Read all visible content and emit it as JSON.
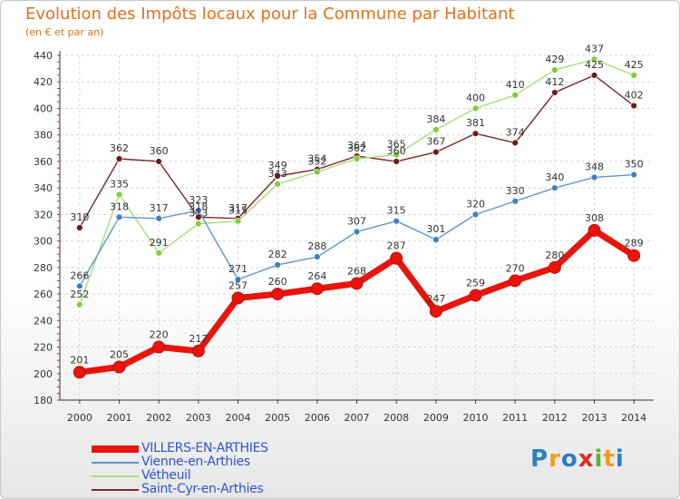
{
  "header": {
    "title": "Evolution des Impôts locaux pour la Commune par Habitant",
    "subtitle": "(en € et par an)"
  },
  "chart_data": {
    "type": "line",
    "title": "Evolution des Impôts locaux pour la Commune par Habitant",
    "subtitle": "(en € et par an)",
    "xlabel": "",
    "ylabel": "",
    "x": [
      "2000",
      "2001",
      "2002",
      "2003",
      "2004",
      "2005",
      "2006",
      "2007",
      "2008",
      "2009",
      "2010",
      "2011",
      "2012",
      "2013",
      "2014"
    ],
    "ylim": [
      180,
      440
    ],
    "yticks": [
      180,
      200,
      220,
      240,
      260,
      280,
      300,
      320,
      340,
      360,
      380,
      400,
      420,
      440
    ],
    "grid": true,
    "series": [
      {
        "name": "VILLERS-EN-ARTHIES",
        "color": "#e8140e",
        "emphasis": true,
        "values": [
          201,
          205,
          220,
          217,
          257,
          260,
          264,
          268,
          287,
          247,
          259,
          270,
          280,
          308,
          289
        ],
        "labels": [
          "201",
          "205",
          "220",
          "217",
          "257",
          "260",
          "264",
          "268",
          "287",
          "247",
          "259",
          "270",
          "280",
          "308",
          "289"
        ]
      },
      {
        "name": "Vienne-en-Arthies",
        "color": "#5c96c8",
        "point_color": "#3f7fc0",
        "values": [
          266,
          318,
          317,
          323,
          271,
          282,
          288,
          307,
          315,
          301,
          320,
          330,
          340,
          348,
          350
        ],
        "labels": [
          "266",
          "318",
          "317",
          "323",
          "271",
          "282",
          "288",
          "307",
          "315",
          "301",
          "320",
          "330",
          "340",
          "348",
          "350"
        ]
      },
      {
        "name": "Vétheuil",
        "color": "#a9dc7f",
        "point_color": "#7fcc3c",
        "values": [
          252,
          335,
          291,
          313,
          315,
          343,
          352,
          362,
          365,
          384,
          400,
          410,
          429,
          437,
          425
        ],
        "labels": [
          "252",
          "335",
          "291",
          "313",
          "315",
          "343",
          "352",
          "362",
          "365",
          "384",
          "400",
          "410",
          "429",
          "437",
          "425"
        ]
      },
      {
        "name": "Saint-Cyr-en-Arthies",
        "color": "#7a2a2a",
        "point_color": "#6b1a1a",
        "values": [
          310,
          362,
          360,
          318,
          317,
          349,
          354,
          364,
          360,
          367,
          381,
          374,
          412,
          425,
          402
        ],
        "labels": [
          "310",
          "362",
          "360",
          "318",
          "317",
          "349",
          "354",
          "364",
          "360",
          "367",
          "381",
          "374",
          "412",
          "425",
          "402"
        ]
      }
    ],
    "legend": {
      "position": "bottom-left"
    }
  },
  "legend": {
    "items": [
      {
        "label": "VILLERS-EN-ARTHIES",
        "color": "#e8140e"
      },
      {
        "label": "Vienne-en-Arthies",
        "color": "#5c96c8"
      },
      {
        "label": "Vétheuil",
        "color": "#a9dc7f"
      },
      {
        "label": "Saint-Cyr-en-Arthies",
        "color": "#7a2a2a"
      }
    ]
  },
  "logo": {
    "text": "Proxiti",
    "letters": [
      {
        "ch": "P",
        "color": "#2c7ec2"
      },
      {
        "ch": "r",
        "color": "#f29c1f"
      },
      {
        "ch": "o",
        "color": "#2c7ec2"
      },
      {
        "ch": "x",
        "color": "#e22b23"
      },
      {
        "ch": "i",
        "color": "#5bb533"
      },
      {
        "ch": "t",
        "color": "#f29c1f"
      },
      {
        "ch": "i",
        "color": "#2c7ec2"
      }
    ]
  }
}
